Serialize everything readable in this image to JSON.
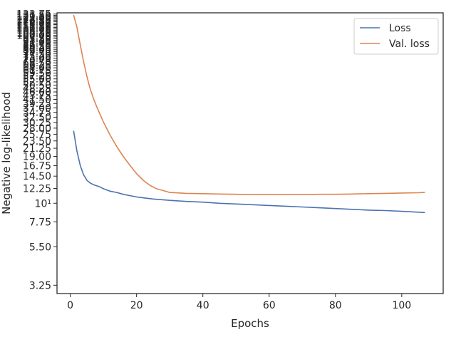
{
  "chart_data": {
    "type": "line",
    "title": "",
    "xlabel": "Epochs",
    "ylabel": "Negative log-likelihood",
    "yscale": "log",
    "xlim": [
      -4,
      112.5
    ],
    "ylim": [
      2.9,
      136
    ],
    "x_ticks": [
      0,
      20,
      40,
      60,
      80,
      100
    ],
    "x_tick_labels": [
      "0",
      "20",
      "40",
      "60",
      "80",
      "100"
    ],
    "y_ticks": [
      3.25,
      5.5,
      7.75,
      10,
      12.25,
      14.5,
      16.75,
      19.0,
      21.25,
      23.5,
      25.75,
      28.0,
      30.25,
      32.5,
      34.75,
      37.0,
      39.25,
      41.5,
      43.75,
      46.0,
      48.25,
      50.5,
      52.75,
      55.0,
      57.25,
      59.5,
      61.75,
      64.0,
      66.25,
      68.5,
      70.75,
      73.0,
      75.25,
      77.5,
      79.75,
      82.0,
      84.25,
      86.5,
      88.75,
      91.0,
      93.25,
      95.5,
      97.75,
      100.0,
      102.25,
      104.5,
      106.75,
      109.0,
      111.25,
      113.5,
      115.75,
      118.0,
      120.25,
      122.5,
      124.75,
      127.0,
      129.25,
      131.5,
      133.75
    ],
    "y_tick_labels": [
      "3.25",
      "5.50",
      "7.75",
      "10¹",
      "12.25",
      "14.50",
      "16.75",
      "19.00",
      "21.25",
      "23.50",
      "25.75",
      "28.00",
      "30.25",
      "32.50",
      "34.75",
      "37.00",
      "39.25",
      "41.50",
      "43.75",
      "46.00",
      "48.25",
      "50.50",
      "52.75",
      "55.00",
      "57.25",
      "59.50",
      "61.75",
      "64.00",
      "66.25",
      "68.50",
      "70.75",
      "73.00",
      "75.25",
      "77.50",
      "79.75",
      "82.00",
      "84.25",
      "86.50",
      "88.75",
      "91.00",
      "93.25",
      "95.50",
      "97.75",
      "100.00",
      "102.25",
      "104.50",
      "106.75",
      "109.00",
      "111.25",
      "113.50",
      "115.75",
      "118.00",
      "120.25",
      "122.50",
      "124.75",
      "127.00",
      "129.25",
      "131.50",
      "133.75"
    ],
    "grid": false,
    "legend_position": "top-right",
    "series": [
      {
        "name": "Loss",
        "color": "#4c72b0",
        "x": [
          1,
          2,
          3,
          4,
          5,
          6,
          7,
          8,
          9,
          10,
          12,
          14,
          16,
          18,
          20,
          25,
          30,
          35,
          40,
          45,
          50,
          55,
          60,
          65,
          70,
          75,
          80,
          85,
          90,
          95,
          100,
          105,
          107
        ],
        "y": [
          27.0,
          20.5,
          16.8,
          14.8,
          13.7,
          13.2,
          12.9,
          12.7,
          12.5,
          12.2,
          11.8,
          11.6,
          11.3,
          11.1,
          10.9,
          10.6,
          10.4,
          10.25,
          10.15,
          10.0,
          9.9,
          9.8,
          9.7,
          9.6,
          9.5,
          9.4,
          9.3,
          9.2,
          9.1,
          9.05,
          8.95,
          8.85,
          8.8
        ]
      },
      {
        "name": "Val. loss",
        "color": "#dd8452",
        "x": [
          1,
          2,
          3,
          4,
          5,
          6,
          7,
          8,
          10,
          12,
          14,
          16,
          18,
          20,
          22,
          24,
          26,
          28,
          30,
          35,
          40,
          45,
          50,
          55,
          60,
          65,
          70,
          75,
          80,
          85,
          90,
          95,
          100,
          105,
          107
        ],
        "y": [
          132.0,
          112.0,
          88.0,
          70.0,
          57.0,
          48.0,
          42.0,
          37.5,
          30.5,
          25.5,
          21.8,
          19.0,
          16.8,
          15.0,
          13.7,
          12.8,
          12.2,
          11.9,
          11.6,
          11.45,
          11.4,
          11.35,
          11.3,
          11.25,
          11.25,
          11.25,
          11.25,
          11.3,
          11.3,
          11.35,
          11.4,
          11.45,
          11.5,
          11.55,
          11.6
        ]
      }
    ]
  }
}
